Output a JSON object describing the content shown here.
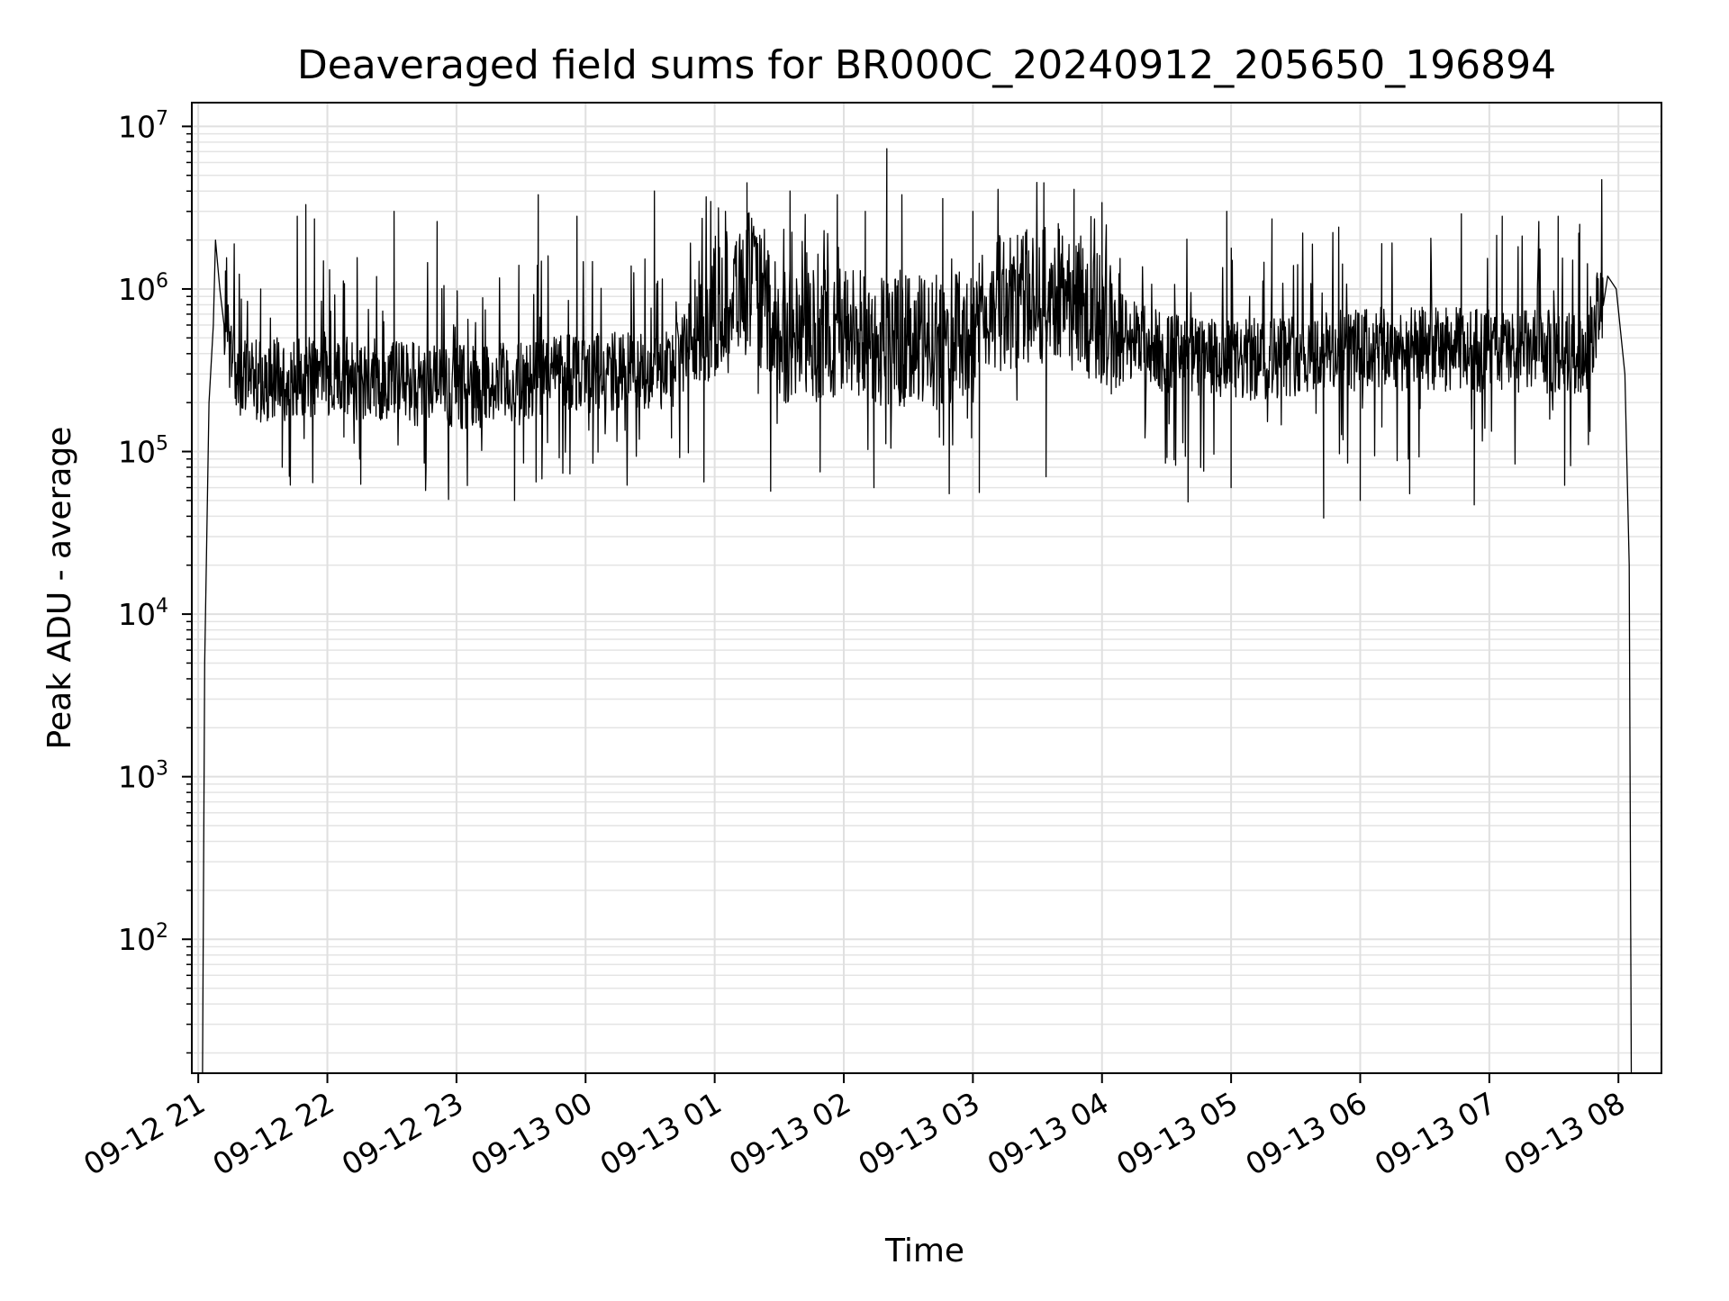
{
  "chart_data": {
    "type": "line",
    "title": "Deaveraged field sums for BR000C_20240912_205650_196894",
    "xlabel": "Time",
    "ylabel": "Peak ADU - average",
    "yscale": "log",
    "ylim": [
      15,
      14000000
    ],
    "xlim": [
      "2024-09-12 20:57",
      "2024-09-13 08:20"
    ],
    "grid": true,
    "legend": "none",
    "line_color": "#000000",
    "x_ticks": [
      {
        "time": "2024-09-12 21:00",
        "label": "09-12 21"
      },
      {
        "time": "2024-09-12 22:00",
        "label": "09-12 22"
      },
      {
        "time": "2024-09-12 23:00",
        "label": "09-12 23"
      },
      {
        "time": "2024-09-13 00:00",
        "label": "09-13 00"
      },
      {
        "time": "2024-09-13 01:00",
        "label": "09-13 01"
      },
      {
        "time": "2024-09-13 02:00",
        "label": "09-13 02"
      },
      {
        "time": "2024-09-13 03:00",
        "label": "09-13 03"
      },
      {
        "time": "2024-09-13 04:00",
        "label": "09-13 04"
      },
      {
        "time": "2024-09-13 05:00",
        "label": "09-13 05"
      },
      {
        "time": "2024-09-13 06:00",
        "label": "09-13 06"
      },
      {
        "time": "2024-09-13 07:00",
        "label": "09-13 07"
      },
      {
        "time": "2024-09-13 08:00",
        "label": "09-13 08"
      }
    ],
    "y_ticks": [
      {
        "value": 100,
        "base": "10",
        "exp": "2"
      },
      {
        "value": 1000,
        "base": "10",
        "exp": "3"
      },
      {
        "value": 10000,
        "base": "10",
        "exp": "4"
      },
      {
        "value": 100000,
        "base": "10",
        "exp": "5"
      },
      {
        "value": 1000000,
        "base": "10",
        "exp": "6"
      },
      {
        "value": 10000000,
        "base": "10",
        "exp": "7"
      }
    ],
    "series": [
      {
        "envelope": [
          [
            "2024-09-12 21:02",
            15
          ],
          [
            "2024-09-12 21:03",
            5000
          ],
          [
            "2024-09-12 21:05",
            200000
          ],
          [
            "2024-09-12 21:07",
            600000
          ],
          [
            "2024-09-12 21:10",
            1000000
          ],
          [
            "2024-09-12 21:12",
            600000
          ],
          [
            "2024-09-12 21:18",
            300000
          ],
          [
            "2024-09-12 21:30",
            270000
          ],
          [
            "2024-09-12 22:00",
            300000
          ],
          [
            "2024-09-12 22:30",
            270000
          ],
          [
            "2024-09-12 23:00",
            250000
          ],
          [
            "2024-09-12 23:30",
            260000
          ],
          [
            "2024-09-12 23:50",
            330000
          ],
          [
            "2024-09-13 00:10",
            300000
          ],
          [
            "2024-09-13 00:40",
            330000
          ],
          [
            "2024-09-13 01:00",
            800000
          ],
          [
            "2024-09-13 01:15",
            1200000
          ],
          [
            "2024-09-13 01:30",
            500000
          ],
          [
            "2024-09-13 02:00",
            550000
          ],
          [
            "2024-09-13 02:30",
            450000
          ],
          [
            "2024-09-13 03:00",
            500000
          ],
          [
            "2024-09-13 03:10",
            800000
          ],
          [
            "2024-09-13 03:45",
            1000000
          ],
          [
            "2024-09-13 04:00",
            600000
          ],
          [
            "2024-09-13 04:30",
            400000
          ],
          [
            "2024-09-13 05:00",
            350000
          ],
          [
            "2024-09-13 05:30",
            400000
          ],
          [
            "2024-09-13 06:00",
            420000
          ],
          [
            "2024-09-13 06:30",
            430000
          ],
          [
            "2024-09-13 07:00",
            420000
          ],
          [
            "2024-09-13 07:45",
            400000
          ],
          [
            "2024-09-13 07:55",
            1200000
          ],
          [
            "2024-09-13 07:59",
            1000000
          ],
          [
            "2024-09-13 08:03",
            300000
          ],
          [
            "2024-09-13 08:05",
            20000
          ],
          [
            "2024-09-13 08:06",
            15
          ]
        ],
        "peaks": [
          [
            "2024-09-12 21:08",
            2000000
          ],
          [
            "2024-09-12 21:29",
            1000000
          ],
          [
            "2024-09-12 21:46",
            2800000
          ],
          [
            "2024-09-12 21:50",
            3300000
          ],
          [
            "2024-09-12 21:54",
            2700000
          ],
          [
            "2024-09-12 22:31",
            3000000
          ],
          [
            "2024-09-12 22:51",
            2600000
          ],
          [
            "2024-09-12 23:29",
            1400000
          ],
          [
            "2024-09-12 23:38",
            3800000
          ],
          [
            "2024-09-12 23:56",
            2800000
          ],
          [
            "2024-09-13 00:32",
            4000000
          ],
          [
            "2024-09-13 01:05",
            3000000
          ],
          [
            "2024-09-13 01:15",
            4500000
          ],
          [
            "2024-09-13 01:35",
            4000000
          ],
          [
            "2024-09-13 01:57",
            3800000
          ],
          [
            "2024-09-13 02:10",
            3000000
          ],
          [
            "2024-09-13 02:20",
            7300000
          ],
          [
            "2024-09-13 02:27",
            3800000
          ],
          [
            "2024-09-13 02:46",
            3600000
          ],
          [
            "2024-09-13 03:00",
            3000000
          ],
          [
            "2024-09-13 03:33",
            4500000
          ],
          [
            "2024-09-13 03:47",
            4100000
          ],
          [
            "2024-09-13 04:00",
            3400000
          ],
          [
            "2024-09-13 04:58",
            3000000
          ],
          [
            "2024-09-13 05:19",
            2700000
          ],
          [
            "2024-09-13 05:50",
            2400000
          ],
          [
            "2024-09-13 06:10",
            1900000
          ],
          [
            "2024-09-13 06:47",
            2900000
          ],
          [
            "2024-09-13 07:06",
            2800000
          ],
          [
            "2024-09-13 07:23",
            2600000
          ],
          [
            "2024-09-13 07:32",
            2800000
          ],
          [
            "2024-09-13 07:42",
            2500000
          ]
        ],
        "dips": [
          [
            "2024-09-12 21:39",
            80000
          ],
          [
            "2024-09-12 22:15",
            90000
          ],
          [
            "2024-09-12 22:45",
            85000
          ],
          [
            "2024-09-12 23:27",
            50000
          ],
          [
            "2024-09-12 23:37",
            65000
          ],
          [
            "2024-09-13 00:55",
            65000
          ],
          [
            "2024-09-13 01:26",
            57000
          ],
          [
            "2024-09-13 01:49",
            75000
          ],
          [
            "2024-09-13 02:14",
            60000
          ],
          [
            "2024-09-13 02:49",
            55000
          ],
          [
            "2024-09-13 03:03",
            56000
          ],
          [
            "2024-09-13 03:34",
            70000
          ],
          [
            "2024-09-13 04:40",
            49000
          ],
          [
            "2024-09-13 05:00",
            60000
          ],
          [
            "2024-09-13 05:43",
            39000
          ],
          [
            "2024-09-13 06:00",
            50000
          ],
          [
            "2024-09-13 06:23",
            55000
          ],
          [
            "2024-09-13 06:53",
            47000
          ],
          [
            "2024-09-13 07:35",
            62000
          ]
        ]
      }
    ]
  }
}
